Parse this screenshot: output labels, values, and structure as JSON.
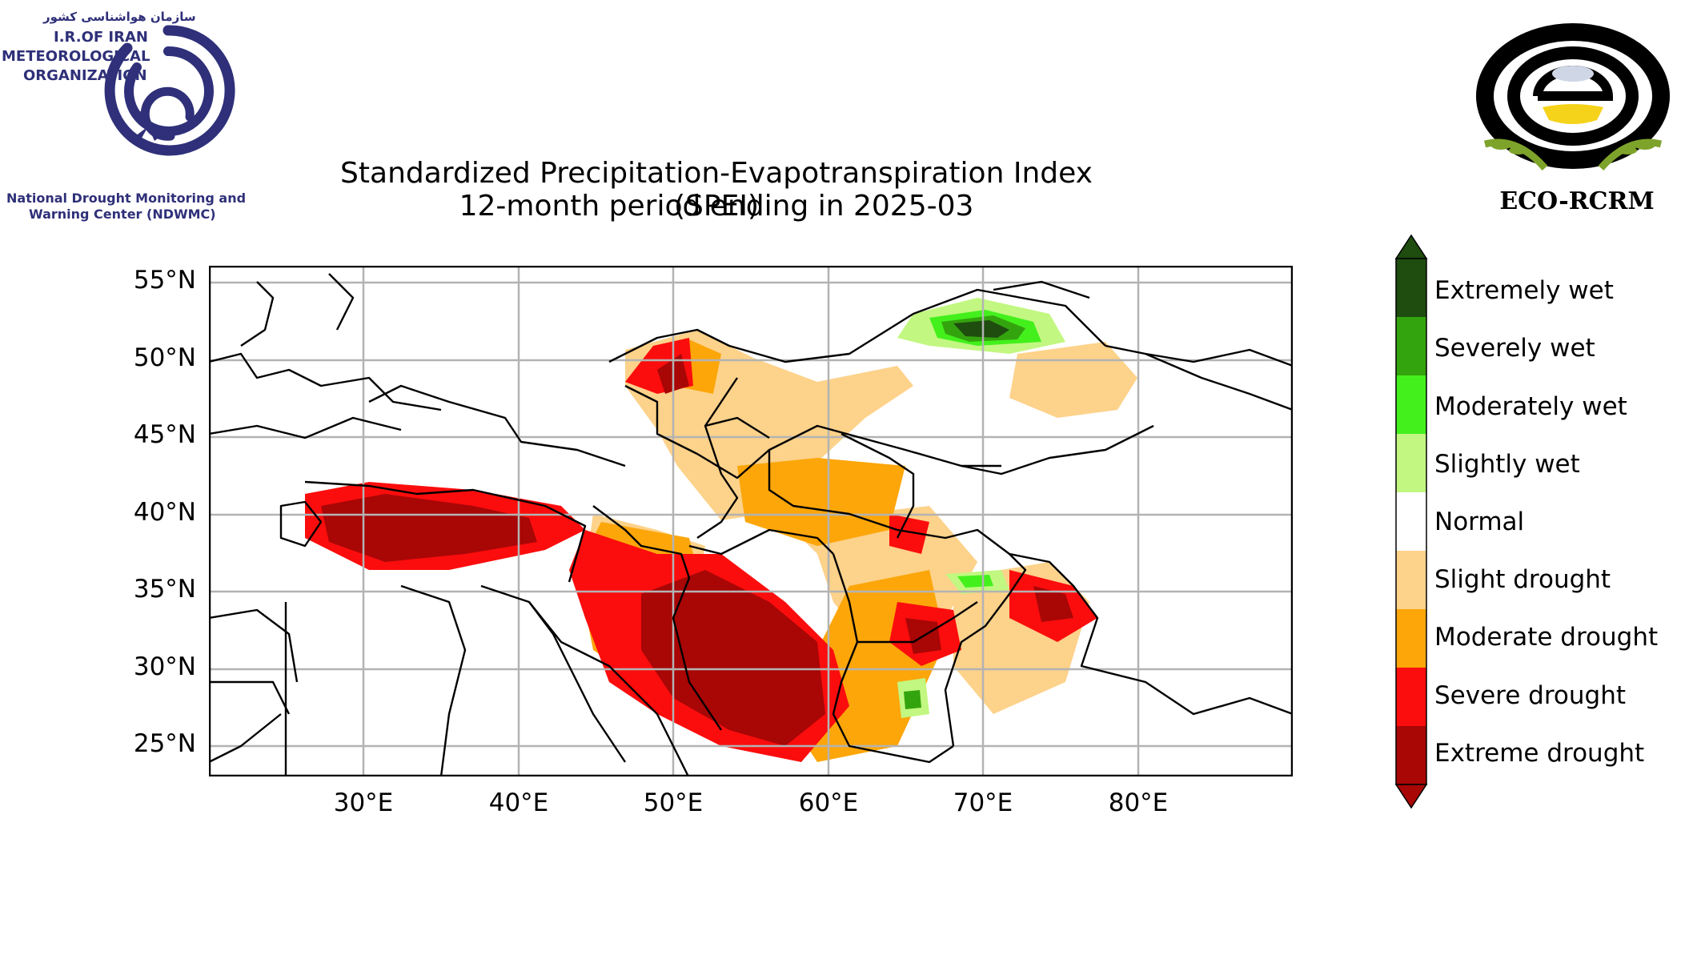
{
  "title": {
    "line1": "Standardized Precipitation-Evapotranspiration Index (SPEI)",
    "line2": "12-month period ending in 2025-03"
  },
  "logo_left": {
    "persian": "سازمان هواشناسی کشور",
    "line1": "I.R.OF IRAN",
    "line2": "METEOROLOGICAL",
    "line3": "ORGANIZATION",
    "center1": "National Drought Monitoring and",
    "center2": "Warning Center (NDWMC)",
    "color": "#2f3079"
  },
  "logo_right": {
    "text": "ECO-RCRM"
  },
  "axes": {
    "lat_labels": [
      "55°N",
      "50°N",
      "45°N",
      "40°N",
      "35°N",
      "30°N",
      "25°N"
    ],
    "lon_labels": [
      "30°E",
      "40°E",
      "50°E",
      "60°E",
      "70°E",
      "80°E"
    ],
    "lat_range": [
      23,
      56
    ],
    "lon_range": [
      20,
      90
    ],
    "grid": true
  },
  "legend": {
    "classes": [
      {
        "label": "Extremely wet",
        "color": "#1e4d0f"
      },
      {
        "label": "Severely wet",
        "color": "#34a40e"
      },
      {
        "label": "Moderately wet",
        "color": "#43f01c"
      },
      {
        "label": "Slightly wet",
        "color": "#c2f781"
      },
      {
        "label": "Normal",
        "color": "#ffffff"
      },
      {
        "label": "Slight drought",
        "color": "#fdd28a"
      },
      {
        "label": "Moderate drought",
        "color": "#fca60a"
      },
      {
        "label": "Severe drought",
        "color": "#fb0d0d"
      },
      {
        "label": "Extreme drought",
        "color": "#a90606"
      }
    ]
  }
}
